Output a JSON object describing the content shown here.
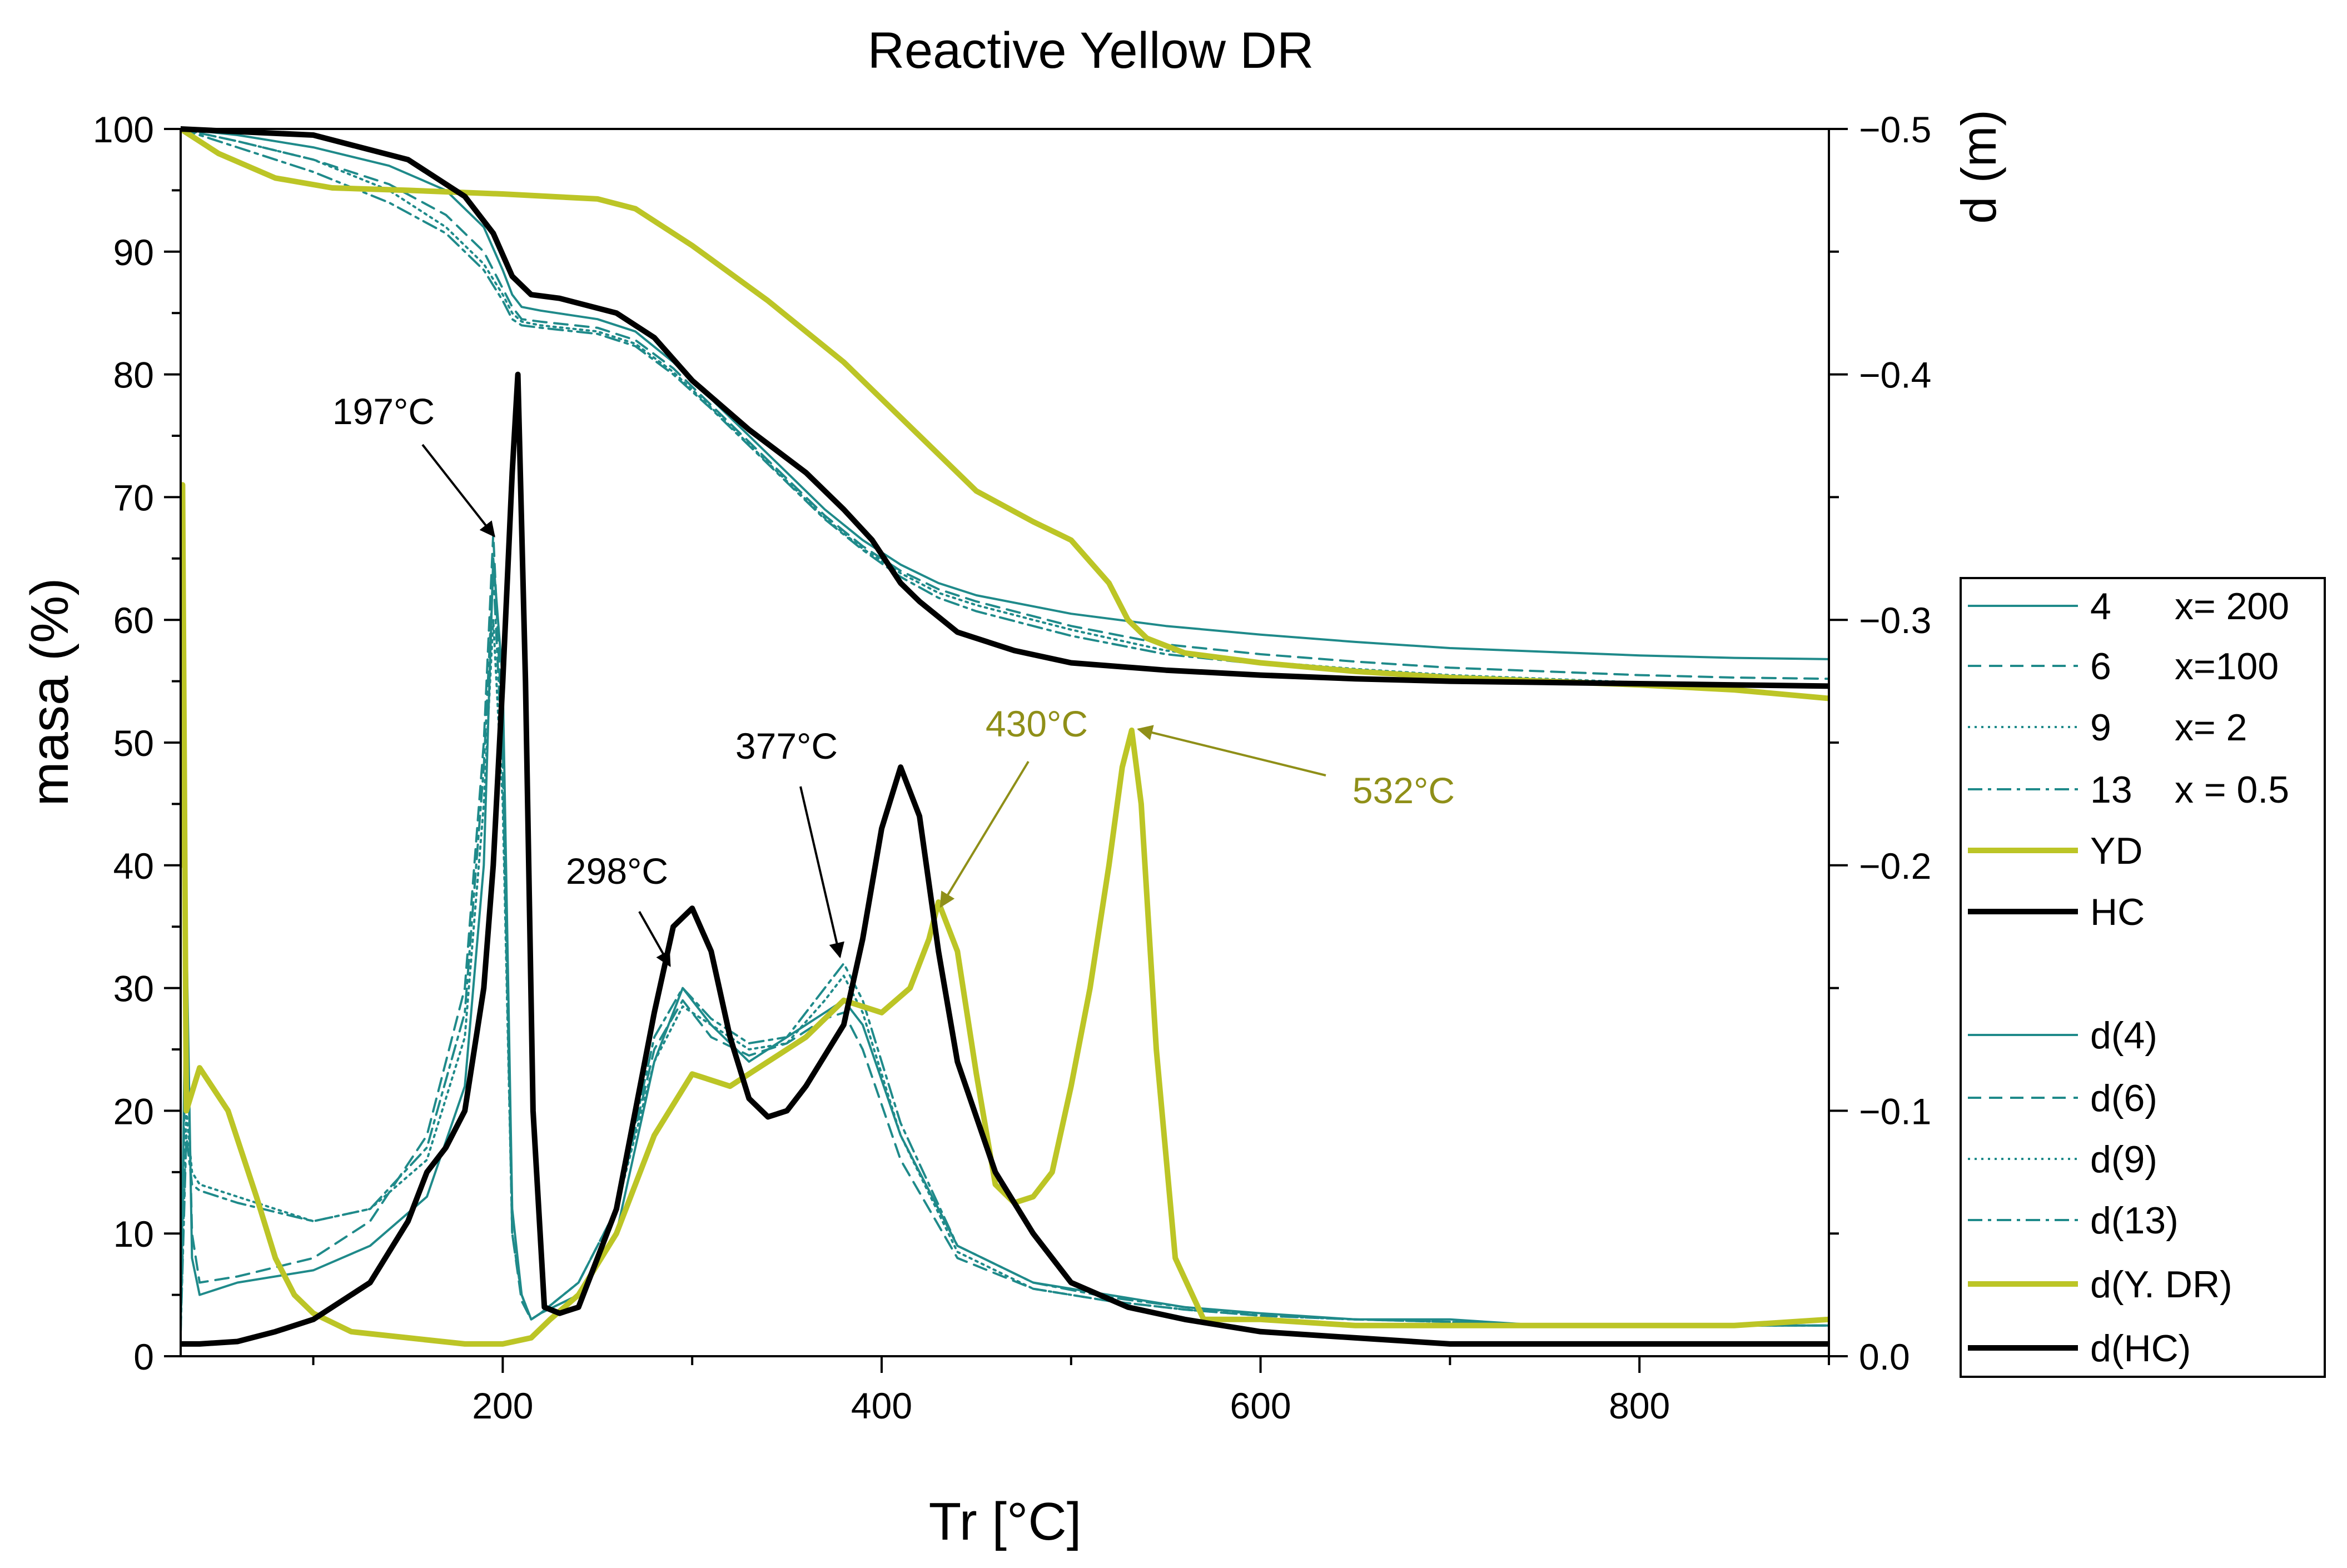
{
  "colors": {
    "teal": "#1f8a8a",
    "yellow": "#bcc526",
    "black": "#000000",
    "olive": "#8f8f18",
    "axis": "#000000"
  },
  "chart_data": {
    "type": "line",
    "title": "Reactive Yellow DR",
    "xlabel": "Tr [°C]",
    "ylabel": "masa (%)",
    "y2label": "d (m)",
    "xlim": [
      30,
      900
    ],
    "ylim": [
      0,
      100
    ],
    "y2lim": [
      0.0,
      -0.5
    ],
    "grid": false,
    "legend_position": "right",
    "x_ticks": [
      "200",
      "400",
      "600",
      "800"
    ],
    "y_ticks": [
      "0",
      "10",
      "20",
      "30",
      "40",
      "50",
      "60",
      "70",
      "80",
      "90",
      "100"
    ],
    "y2_ticks": [
      "0.0",
      "−0.1",
      "−0.2",
      "−0.3",
      "−0.4",
      "−0.5"
    ],
    "legend": [
      {
        "num": "4",
        "label": "x= 200",
        "style": "solid-thin",
        "color": "teal"
      },
      {
        "num": "6",
        "label": "x=100",
        "style": "dash",
        "color": "teal"
      },
      {
        "num": "9",
        "label": "x= 2",
        "style": "dot",
        "color": "teal"
      },
      {
        "num": "13",
        "label": "x = 0.5",
        "style": "dashdot",
        "color": "teal"
      },
      {
        "num": "",
        "label": "YD",
        "style": "solid-thick",
        "color": "yellow"
      },
      {
        "num": "",
        "label": "HC",
        "style": "solid-thick",
        "color": "black"
      },
      {
        "num": "",
        "label": "d(4)",
        "style": "solid-thin",
        "color": "teal"
      },
      {
        "num": "",
        "label": "d(6)",
        "style": "dash",
        "color": "teal"
      },
      {
        "num": "",
        "label": "d(9)",
        "style": "dot",
        "color": "teal"
      },
      {
        "num": "",
        "label": "d(13)",
        "style": "dashdot",
        "color": "teal"
      },
      {
        "num": "",
        "label": "d(Y. DR)",
        "style": "solid-thick",
        "color": "yellow"
      },
      {
        "num": "",
        "label": "d(HC)",
        "style": "solid-thick",
        "color": "black"
      }
    ],
    "annotations": [
      {
        "text": "197°C",
        "x": 197,
        "y": 67,
        "color": "black"
      },
      {
        "text": "298°C",
        "x": 290,
        "y": 32,
        "color": "black"
      },
      {
        "text": "377°C",
        "x": 378,
        "y": 33,
        "color": "black"
      },
      {
        "text": "430°C",
        "x": 430,
        "y": 37,
        "color": "olive"
      },
      {
        "text": "532°C",
        "x": 532,
        "y": 51,
        "color": "olive"
      }
    ],
    "series": [
      {
        "name": "4",
        "color": "teal",
        "style": "solid-thin",
        "x": [
          30,
          60,
          100,
          140,
          170,
          190,
          200,
          205,
          210,
          220,
          250,
          270,
          290,
          310,
          330,
          350,
          370,
          390,
          410,
          430,
          450,
          500,
          550,
          600,
          650,
          700,
          750,
          800,
          850,
          900
        ],
        "y": [
          100,
          99.5,
          98.5,
          97,
          95,
          92,
          88.5,
          86.5,
          85.5,
          85.2,
          84.5,
          83.5,
          81,
          78,
          75,
          72,
          69,
          66.5,
          64.5,
          63,
          62,
          60.5,
          59.5,
          58.8,
          58.2,
          57.7,
          57.4,
          57.1,
          56.9,
          56.8
        ]
      },
      {
        "name": "6",
        "color": "teal",
        "style": "dash",
        "x": [
          30,
          60,
          100,
          140,
          170,
          190,
          200,
          205,
          210,
          220,
          250,
          270,
          290,
          310,
          330,
          350,
          370,
          390,
          410,
          430,
          450,
          500,
          550,
          600,
          650,
          700,
          750,
          800,
          850,
          900
        ],
        "y": [
          100,
          99,
          97.5,
          95.5,
          93,
          90,
          87,
          85.5,
          84.5,
          84.3,
          83.8,
          82.8,
          80.5,
          77.5,
          74.5,
          71.5,
          68.5,
          66,
          64,
          62.5,
          61.5,
          59.5,
          58,
          57.2,
          56.6,
          56.1,
          55.8,
          55.5,
          55.3,
          55.2
        ]
      },
      {
        "name": "9",
        "color": "teal",
        "style": "dot",
        "x": [
          30,
          60,
          100,
          140,
          170,
          190,
          200,
          205,
          210,
          220,
          250,
          270,
          290,
          310,
          330,
          350,
          370,
          390,
          410,
          430,
          450,
          500,
          550,
          600,
          650,
          700,
          750,
          800,
          850,
          900
        ],
        "y": [
          100,
          99,
          97.5,
          95,
          92,
          89,
          86.5,
          85,
          84.3,
          84,
          83.5,
          82.5,
          80.2,
          77.3,
          74.3,
          71.3,
          68.3,
          65.8,
          63.8,
          62.2,
          61.2,
          59.2,
          57.5,
          56.6,
          56,
          55.5,
          55.2,
          54.9,
          54.7,
          54.6
        ]
      },
      {
        "name": "13",
        "color": "teal",
        "style": "dashdot",
        "x": [
          30,
          60,
          100,
          140,
          170,
          190,
          200,
          205,
          210,
          220,
          250,
          270,
          290,
          310,
          330,
          350,
          370,
          390,
          410,
          430,
          450,
          500,
          550,
          600,
          650,
          700,
          750,
          800,
          850,
          900
        ],
        "y": [
          100,
          98.5,
          96.5,
          94,
          91.5,
          88.5,
          86,
          84.5,
          84,
          83.8,
          83.3,
          82.3,
          80,
          77.2,
          74.2,
          71.2,
          68.2,
          65.7,
          63.5,
          61.8,
          60.7,
          58.7,
          57.2,
          56.4,
          55.8,
          55.4,
          55.1,
          54.8,
          54.6,
          54.5
        ]
      },
      {
        "name": "YD",
        "color": "yellow",
        "style": "solid-thick",
        "x": [
          30,
          50,
          80,
          110,
          150,
          200,
          250,
          270,
          300,
          340,
          380,
          420,
          450,
          480,
          500,
          520,
          530,
          540,
          560,
          600,
          650,
          700,
          750,
          800,
          850,
          900
        ],
        "y": [
          100,
          98,
          96,
          95.2,
          95,
          94.7,
          94.3,
          93.5,
          90.5,
          86,
          81,
          75,
          70.5,
          68,
          66.5,
          63,
          60,
          58.5,
          57.3,
          56.5,
          55.8,
          55.3,
          55,
          54.7,
          54.3,
          53.6
        ]
      },
      {
        "name": "HC",
        "color": "black",
        "style": "solid-thick",
        "x": [
          30,
          100,
          150,
          180,
          195,
          205,
          215,
          230,
          260,
          280,
          300,
          330,
          360,
          380,
          395,
          410,
          420,
          440,
          470,
          500,
          550,
          600,
          650,
          700,
          750,
          800,
          850,
          900
        ],
        "y": [
          100,
          99.5,
          97.5,
          94.5,
          91.5,
          88,
          86.5,
          86.2,
          85,
          83,
          79.5,
          75.5,
          72,
          69,
          66.5,
          63,
          61.5,
          59,
          57.5,
          56.5,
          55.9,
          55.5,
          55.2,
          55,
          54.9,
          54.8,
          54.7,
          54.6
        ]
      },
      {
        "name": "d(4)",
        "color": "teal",
        "style": "solid-thin",
        "x": [
          30,
          33,
          36,
          40,
          60,
          100,
          130,
          160,
          180,
          190,
          195,
          200,
          205,
          210,
          215,
          220,
          240,
          260,
          280,
          295,
          310,
          330,
          350,
          370,
          380,
          390,
          410,
          440,
          480,
          520,
          560,
          600,
          650,
          700,
          750,
          800,
          850,
          900
        ],
        "y": [
          2,
          35,
          8,
          5,
          6,
          7,
          9,
          13,
          22,
          40,
          65,
          55,
          12,
          5,
          3,
          3.5,
          5,
          10,
          24,
          30,
          27,
          24,
          26,
          28,
          29,
          27,
          18,
          9,
          6,
          5,
          4,
          3.5,
          3,
          3,
          2.5,
          2.5,
          2.5,
          2.5
        ]
      },
      {
        "name": "d(6)",
        "color": "teal",
        "style": "dash",
        "x": [
          30,
          33,
          36,
          40,
          60,
          100,
          130,
          160,
          180,
          190,
          195,
          200,
          205,
          210,
          215,
          220,
          240,
          260,
          280,
          295,
          310,
          330,
          350,
          370,
          380,
          390,
          410,
          440,
          480,
          520,
          560,
          600,
          650,
          700,
          750,
          800,
          850,
          900
        ],
        "y": [
          2,
          30,
          10,
          6,
          6.5,
          8,
          11,
          18,
          30,
          50,
          67,
          50,
          10,
          4.5,
          3,
          3.5,
          6,
          12,
          25,
          29,
          26,
          24.5,
          25.5,
          27.5,
          28,
          25,
          16,
          8,
          5.5,
          4.5,
          3.8,
          3.3,
          3,
          2.8,
          2.5,
          2.5,
          2.5,
          2.5
        ]
      },
      {
        "name": "d(9)",
        "color": "teal",
        "style": "dot",
        "x": [
          30,
          33,
          36,
          40,
          60,
          100,
          130,
          160,
          180,
          190,
          195,
          200,
          205,
          210,
          215,
          220,
          240,
          260,
          280,
          295,
          310,
          330,
          350,
          370,
          380,
          390,
          410,
          440,
          480,
          520,
          560,
          600,
          650,
          700,
          750,
          800,
          850,
          900
        ],
        "y": [
          2,
          20,
          15,
          14,
          13,
          11,
          12,
          16,
          26,
          45,
          60,
          45,
          10,
          5,
          3,
          3.5,
          6,
          12,
          24,
          28.5,
          27,
          25,
          25.5,
          29,
          31,
          28,
          18,
          8.5,
          5.5,
          4.5,
          3.8,
          3.3,
          3,
          2.8,
          2.5,
          2.5,
          2.5,
          2.5
        ]
      },
      {
        "name": "d(13)",
        "color": "teal",
        "style": "dashdot",
        "x": [
          30,
          33,
          36,
          40,
          60,
          100,
          130,
          160,
          180,
          190,
          195,
          200,
          205,
          210,
          215,
          220,
          240,
          260,
          280,
          295,
          310,
          330,
          350,
          370,
          380,
          390,
          410,
          440,
          480,
          520,
          560,
          600,
          650,
          700,
          750,
          800,
          850,
          900
        ],
        "y": [
          2,
          18,
          14,
          13.5,
          12.5,
          11,
          12,
          17,
          28,
          48,
          64,
          48,
          10,
          5,
          3,
          3.5,
          6,
          12,
          26,
          30,
          27.5,
          25.5,
          26,
          30,
          32,
          29,
          19,
          9,
          6,
          4.8,
          4,
          3.4,
          3,
          2.8,
          2.5,
          2.5,
          2.5,
          2.5
        ]
      },
      {
        "name": "d(Y. DR)",
        "color": "yellow",
        "style": "solid-thick",
        "x": [
          30,
          31,
          33,
          40,
          55,
          70,
          80,
          90,
          100,
          120,
          150,
          180,
          200,
          215,
          225,
          240,
          260,
          280,
          300,
          320,
          340,
          360,
          380,
          400,
          415,
          425,
          430,
          440,
          450,
          460,
          470,
          480,
          490,
          500,
          510,
          520,
          527,
          532,
          537,
          545,
          555,
          570,
          600,
          650,
          700,
          750,
          800,
          850,
          900
        ],
        "y": [
          40,
          71,
          20,
          23.5,
          20,
          13,
          8,
          5,
          3.5,
          2,
          1.5,
          1,
          1,
          1.5,
          3,
          5,
          10,
          18,
          23,
          22,
          24,
          26,
          29,
          28,
          30,
          34,
          37,
          33,
          23,
          14,
          12.5,
          13,
          15,
          22,
          30,
          40,
          48,
          51,
          45,
          25,
          8,
          3,
          3,
          2.5,
          2.5,
          2.5,
          2.5,
          2.5,
          3
        ]
      },
      {
        "name": "d(HC)",
        "color": "black",
        "style": "solid-thick",
        "x": [
          30,
          40,
          60,
          80,
          100,
          130,
          150,
          160,
          170,
          180,
          190,
          195,
          200,
          205,
          208,
          212,
          216,
          222,
          230,
          240,
          260,
          280,
          290,
          300,
          310,
          320,
          330,
          340,
          350,
          360,
          380,
          390,
          400,
          410,
          420,
          430,
          440,
          460,
          480,
          500,
          530,
          560,
          600,
          650,
          700,
          750,
          800,
          850,
          900
        ],
        "y": [
          1,
          1,
          1.2,
          2,
          3,
          6,
          11,
          15,
          17,
          20,
          30,
          40,
          55,
          72,
          80,
          55,
          20,
          4,
          3.5,
          4,
          12,
          28,
          35,
          36.5,
          33,
          26,
          21,
          19.5,
          20,
          22,
          27,
          34,
          43,
          48,
          44,
          33,
          24,
          15,
          10,
          6,
          4,
          3,
          2,
          1.5,
          1,
          1,
          1,
          1,
          1
        ]
      }
    ]
  }
}
